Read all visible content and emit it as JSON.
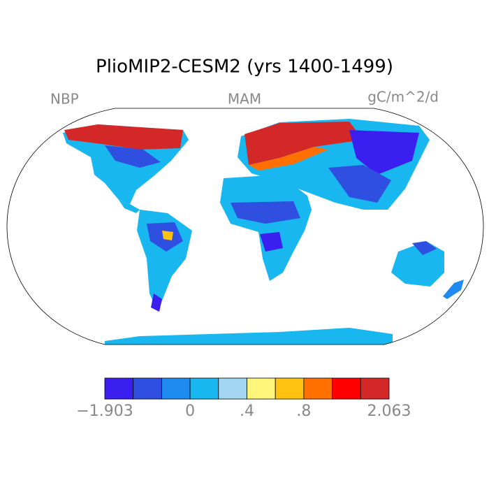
{
  "header": {
    "title": "PlioMIP2-CESM2 (yrs 1400-1499)"
  },
  "labels": {
    "left": "NBP",
    "center": "MAM",
    "right": "gC/m^2/d"
  },
  "colorbar": {
    "colors": [
      "#3a1ff0",
      "#2f4fe0",
      "#1f8af0",
      "#19b7f0",
      "#a2d6f0",
      "#fff57a",
      "#ffc20e",
      "#ff7000",
      "#ff0000",
      "#d42828"
    ],
    "tick_labels": [
      "−1.903",
      "0",
      ".4",
      ".8",
      "2.063"
    ]
  }
}
